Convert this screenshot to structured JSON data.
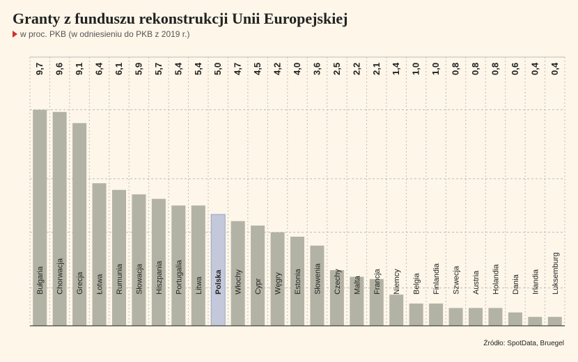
{
  "title": "Granty z funduszu rekonstrukcji Unii Europejskiej",
  "subtitle": "w proc. PKB (w odniesieniu do PKB z 2019 r.)",
  "source": "Źródło: SpotData, Bruegel",
  "colors": {
    "background": "#fdf6e9",
    "bar": "#b3b3a5",
    "highlight": "#c3c8da",
    "highlight_stroke": "#9aa3c2",
    "grid": "#bdbdbd",
    "text": "#222222",
    "accent": "#d0312d"
  },
  "chart_data": {
    "type": "bar",
    "orientation": "vertical",
    "categories": [
      "Bułgaria",
      "Chorwacja",
      "Grecja",
      "Łotwa",
      "Rumunia",
      "Słowacja",
      "Hiszpania",
      "Portugalia",
      "Litwa",
      "Polska",
      "Włochy",
      "Cypr",
      "Węgry",
      "Estonia",
      "Słowenia",
      "Czechy",
      "Malta",
      "Francja",
      "Niemcy",
      "Belgia",
      "Finlandia",
      "Szwecja",
      "Austria",
      "Holandia",
      "Dania",
      "Irlandia",
      "Luksemburg"
    ],
    "values": [
      9.7,
      9.6,
      9.1,
      6.4,
      6.1,
      5.9,
      5.7,
      5.4,
      5.4,
      5.0,
      4.7,
      4.5,
      4.2,
      4.0,
      3.6,
      2.5,
      2.2,
      2.1,
      1.4,
      1.0,
      1.0,
      0.8,
      0.8,
      0.8,
      0.6,
      0.4,
      0.4
    ],
    "value_labels": [
      "9,7",
      "9,6",
      "9,1",
      "6,4",
      "6,1",
      "5,9",
      "5,7",
      "5,4",
      "5,4",
      "5,0",
      "4,7",
      "4,5",
      "4,2",
      "4,0",
      "3,6",
      "2,5",
      "2,2",
      "2,1",
      "1,4",
      "1,0",
      "1,0",
      "0,8",
      "0,8",
      "0,8",
      "0,6",
      "0,4",
      "0,4"
    ],
    "highlight": "Polska",
    "ylim": [
      0,
      10
    ],
    "grid": true,
    "xlabel": "",
    "ylabel": ""
  }
}
